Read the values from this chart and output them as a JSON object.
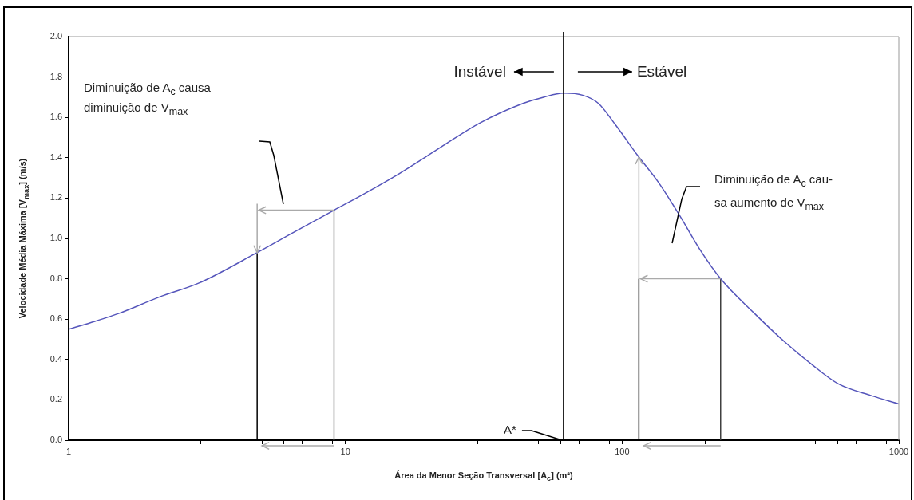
{
  "chart_data": {
    "type": "line",
    "xlabel": "Área da Menor Seção Transversal [A$_{c}$] (m²)",
    "ylabel": "Velocidade Média Máxima [V$_{max}$] (m/s)",
    "log": "x",
    "grid": false,
    "legend": false,
    "marker": "none",
    "line_style": "solid",
    "xlim": [
      1,
      1000
    ],
    "xticks": [
      1,
      {
        "value": 2,
        "label": null
      },
      {
        "value": 3,
        "label": null
      },
      {
        "value": 4,
        "label": null
      },
      {
        "value": 5,
        "label": null
      },
      {
        "value": 6,
        "label": null
      },
      {
        "value": 7,
        "label": null
      },
      {
        "value": 8,
        "label": null
      },
      {
        "value": 9,
        "label": null
      },
      10,
      {
        "value": 20,
        "label": null
      },
      {
        "value": 30,
        "label": null
      },
      {
        "value": 40,
        "label": null
      },
      {
        "value": 50,
        "label": null
      },
      {
        "value": 60,
        "label": null
      },
      {
        "value": 70,
        "label": null
      },
      {
        "value": 80,
        "label": null
      },
      {
        "value": 90,
        "label": null
      },
      100,
      {
        "value": 200,
        "label": null
      },
      {
        "value": 300,
        "label": null
      },
      {
        "value": 400,
        "label": null
      },
      {
        "value": 500,
        "label": null
      },
      {
        "value": 600,
        "label": null
      },
      {
        "value": 700,
        "label": null
      },
      {
        "value": 800,
        "label": null
      },
      {
        "value": 900,
        "label": null
      },
      1000
    ],
    "ylim": [
      0,
      2
    ],
    "yticks": [
      {
        "value": 0,
        "label": "0.0"
      },
      {
        "value": 0.2,
        "label": "0.2"
      },
      {
        "value": 0.4,
        "label": "0.4"
      },
      {
        "value": 0.6,
        "label": "0.6"
      },
      {
        "value": 0.8,
        "label": "0.8"
      },
      {
        "value": 1,
        "label": "1.0"
      },
      {
        "value": 1.2,
        "label": "1.2"
      },
      {
        "value": 1.4,
        "label": "1.4"
      },
      {
        "value": 1.6,
        "label": "1.6"
      },
      {
        "value": 1.8,
        "label": "1.8"
      },
      {
        "value": 2,
        "label": "2.0"
      }
    ],
    "series": [
      {
        "color": "#5555bb",
        "x": [
          1,
          1.25,
          1.53,
          2.13,
          2.97,
          4.8,
          6.5,
          9.1,
          12,
          15.6,
          22,
          30.4,
          44,
          52,
          61.4,
          72,
          82,
          95,
          114,
          135,
          162,
          190,
          227,
          300,
          392,
          480,
          603,
          800,
          1000
        ],
        "values": [
          0.55,
          0.59,
          0.63,
          0.71,
          0.78,
          0.93,
          1.03,
          1.14,
          1.23,
          1.32,
          1.45,
          1.57,
          1.67,
          1.7,
          1.72,
          1.71,
          1.67,
          1.56,
          1.41,
          1.28,
          1.11,
          0.95,
          0.8,
          0.63,
          0.48,
          0.38,
          0.28,
          0.22,
          0.18
        ]
      },
      {
        "color": "#000000",
        "x": [
          4.8,
          4.8
        ],
        "values": [
          0,
          0.93
        ]
      },
      {
        "color": "#808080",
        "x": [
          9.1,
          9.1
        ],
        "values": [
          0,
          1.14
        ]
      },
      {
        "color": "#000000",
        "x": [
          115,
          115
        ],
        "values": [
          0,
          0.8
        ]
      },
      {
        "color": "#404040",
        "x": [
          227,
          227
        ],
        "values": [
          0,
          0.8
        ]
      }
    ],
    "ref_lines": [
      {
        "axis": "x",
        "value": 61.4,
        "label": "A*",
        "color": "#000000"
      }
    ],
    "annotations": [
      "Instável",
      "Estável",
      "Diminuição de A$_{c}$ causa diminuição de V$_{max}$",
      "Diminuição de A$_{c}$ cau-sa aumento de V$_{max}$"
    ]
  }
}
